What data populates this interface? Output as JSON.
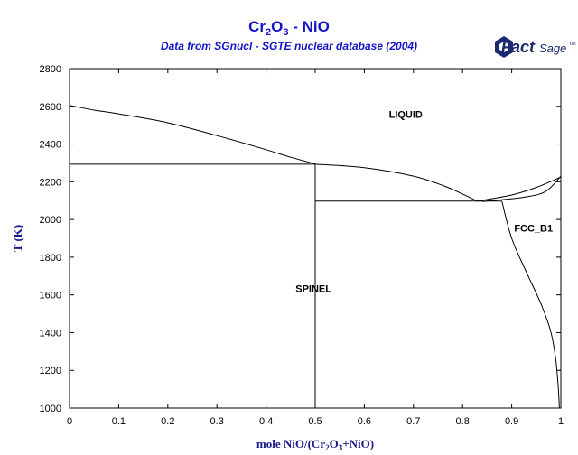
{
  "figure": {
    "title_parts": [
      "Cr",
      "2",
      "O",
      "3",
      " - NiO"
    ],
    "subtitle": "Data from SGnucl - SGTE nuclear database (2004)",
    "logo": {
      "fact": "Fact",
      "sage": "Sage",
      "mark": "tm"
    },
    "xlabel_parts": [
      "mole NiO/(Cr",
      "2",
      "O",
      "3",
      "+NiO)"
    ],
    "ylabel": "T (K)"
  },
  "chart_data": {
    "type": "line",
    "xlim": [
      0,
      1
    ],
    "ylim": [
      1000,
      2800
    ],
    "x_ticks": [
      0,
      0.1,
      0.2,
      0.3,
      0.4,
      0.5,
      0.6,
      0.7,
      0.8,
      0.9,
      1
    ],
    "x_tick_labels": [
      "0",
      "0.1",
      "0.2",
      "0.3",
      "0.4",
      "0.5",
      "0.6",
      "0.7",
      "0.8",
      "0.9",
      "1"
    ],
    "y_ticks": [
      1000,
      1200,
      1400,
      1600,
      1800,
      2000,
      2200,
      2400,
      2600,
      2800
    ],
    "y_tick_labels": [
      "1000",
      "1200",
      "1400",
      "1600",
      "1800",
      "2000",
      "2200",
      "2400",
      "2600",
      "2800"
    ],
    "grid": false,
    "phase_labels": [
      {
        "text": "LIQUID",
        "x": 0.65,
        "y": 2540
      },
      {
        "text": "SPINEL",
        "x": 0.46,
        "y": 1615
      },
      {
        "text": "FCC_B1",
        "x": 0.905,
        "y": 1935
      }
    ],
    "lines": [
      {
        "name": "liquidus-left",
        "points": [
          [
            0,
            2605
          ],
          [
            0.05,
            2580
          ],
          [
            0.1,
            2560
          ],
          [
            0.2,
            2513
          ],
          [
            0.3,
            2445
          ],
          [
            0.4,
            2370
          ],
          [
            0.45,
            2330
          ],
          [
            0.5,
            2295
          ]
        ]
      },
      {
        "name": "liquidus-right",
        "points": [
          [
            0.5,
            2293
          ],
          [
            0.6,
            2275
          ],
          [
            0.7,
            2230
          ],
          [
            0.76,
            2180
          ],
          [
            0.8,
            2135
          ],
          [
            0.83,
            2097
          ]
        ]
      },
      {
        "name": "eutectic-spinel-liquid",
        "points": [
          [
            0,
            2293
          ],
          [
            0.5,
            2293
          ]
        ]
      },
      {
        "name": "spinel-stoichiometric",
        "points": [
          [
            0.5,
            2293
          ],
          [
            0.5,
            1000
          ]
        ]
      },
      {
        "name": "eutectic-liquid-fcc",
        "points": [
          [
            0.5,
            2097
          ],
          [
            0.88,
            2097
          ]
        ]
      },
      {
        "name": "fcc-liquidus",
        "points": [
          [
            0.83,
            2097
          ],
          [
            0.9,
            2130
          ],
          [
            0.95,
            2170
          ],
          [
            1,
            2225
          ]
        ]
      },
      {
        "name": "fcc-solidus",
        "points": [
          [
            0.84,
            2095
          ],
          [
            0.88,
            2105
          ],
          [
            0.93,
            2120
          ],
          [
            0.97,
            2150
          ],
          [
            1,
            2230
          ]
        ]
      },
      {
        "name": "fcc-solvus",
        "points": [
          [
            0.88,
            2097
          ],
          [
            0.9,
            1900
          ],
          [
            0.93,
            1720
          ],
          [
            0.96,
            1550
          ],
          [
            0.98,
            1400
          ],
          [
            0.99,
            1250
          ],
          [
            0.995,
            1100
          ],
          [
            0.997,
            1000
          ]
        ]
      }
    ]
  }
}
